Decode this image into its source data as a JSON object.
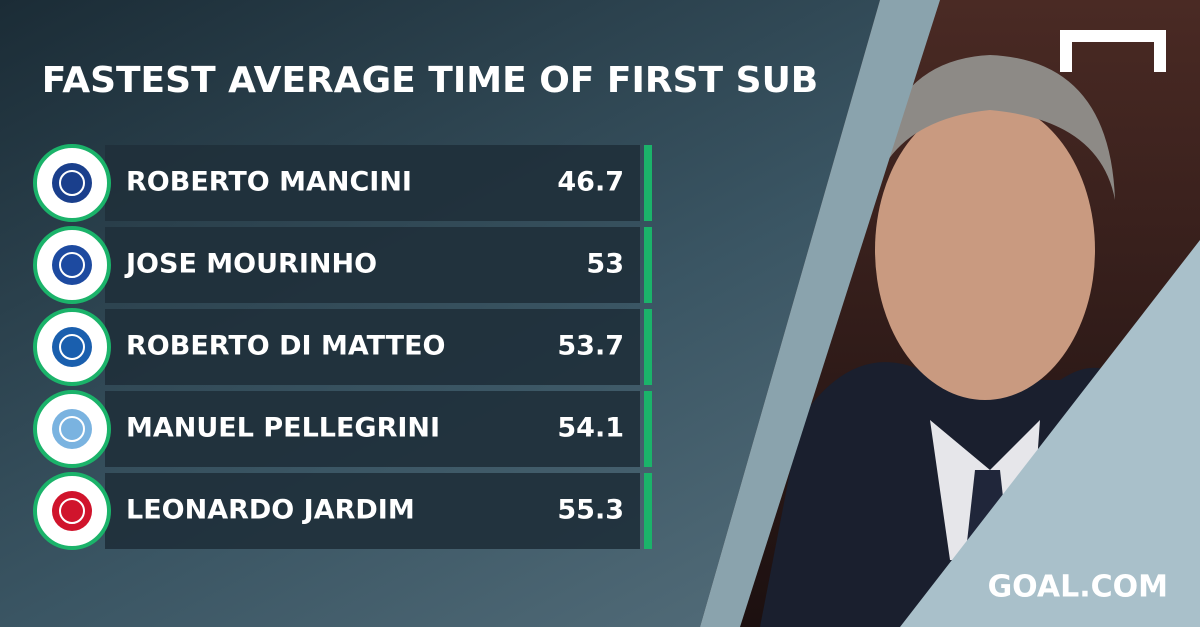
{
  "title": "FASTEST AVERAGE TIME OF FIRST SUB",
  "rows": [
    {
      "name": "ROBERTO MANCINI",
      "value": 46.7
    },
    {
      "name": "JOSE MOURINHO",
      "value": 53
    },
    {
      "name": "ROBERTO DI MATTEO",
      "value": 53.7
    },
    {
      "name": "MANUEL PELLEGRINI",
      "value": 54.1
    },
    {
      "name": "LEONARDO JARDIM",
      "value": 55.3
    }
  ],
  "brand": "GOAL.COM"
}
